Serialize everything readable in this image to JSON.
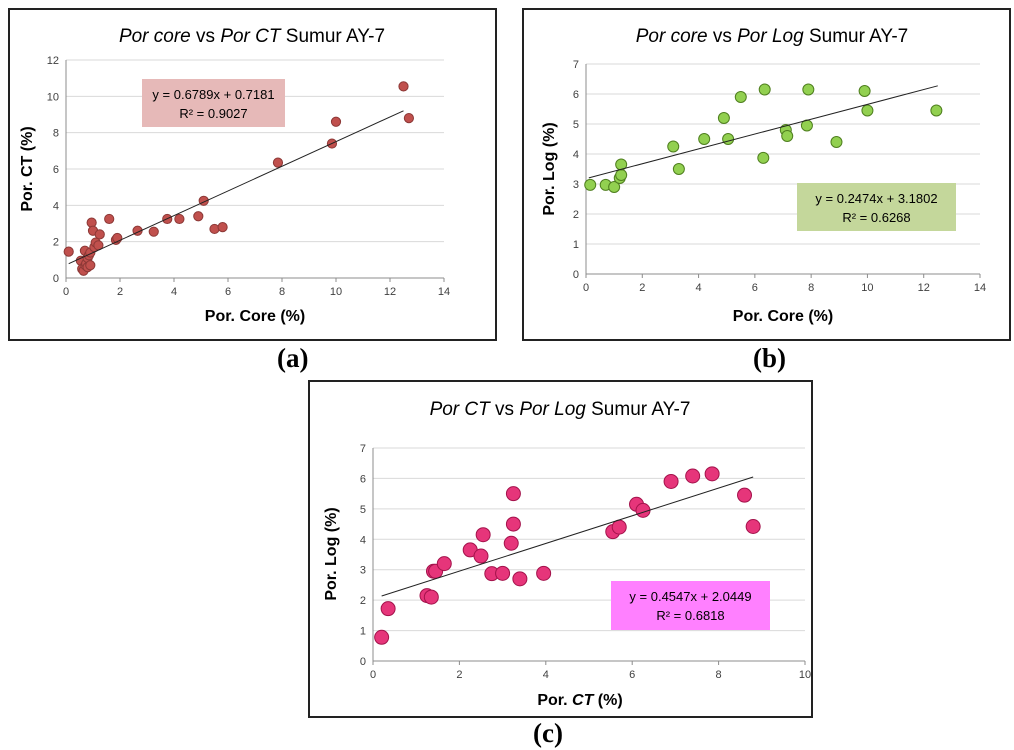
{
  "captions": {
    "a": "(a)",
    "b": "(b)",
    "c": "(c)"
  },
  "chart_data": [
    {
      "type": "scatter",
      "title_parts": [
        {
          "text": "Por core",
          "italic": true
        },
        {
          "text": " vs ",
          "italic": false
        },
        {
          "text": "Por CT",
          "italic": true
        },
        {
          "text": " Sumur AY-7",
          "italic": false
        }
      ],
      "xlabel": "Por. Core (%)",
      "ylabel": "Por. CT (%)",
      "xlim": [
        0,
        14
      ],
      "ylim": [
        0,
        12
      ],
      "xticks": [
        0,
        2,
        4,
        6,
        8,
        10,
        12,
        14
      ],
      "yticks": [
        0,
        2,
        4,
        6,
        8,
        10,
        12
      ],
      "grid": true,
      "marker_color": "#c0504d",
      "marker_stroke": "#8c3836",
      "equation": "y = 0.6789x + 0.7181",
      "r_squared": "R² = 0.9027",
      "equation_box_color": "#e6b9b8",
      "trendline": {
        "slope": 0.6789,
        "intercept": 0.7181,
        "x_start": 0.1,
        "x_end": 12.5
      },
      "x": [
        0.1,
        0.55,
        0.6,
        0.65,
        0.7,
        0.72,
        0.75,
        0.8,
        0.8,
        0.85,
        0.9,
        0.9,
        0.95,
        1.0,
        1.05,
        1.1,
        1.2,
        1.25,
        1.6,
        1.85,
        1.9,
        2.65,
        3.25,
        3.75,
        4.2,
        4.9,
        5.1,
        5.5,
        5.8,
        7.85,
        9.85,
        10.0,
        12.5,
        12.7
      ],
      "y": [
        1.45,
        0.95,
        0.5,
        0.4,
        1.5,
        0.7,
        0.8,
        1.1,
        0.6,
        1.25,
        0.7,
        1.4,
        3.05,
        2.6,
        1.7,
        1.95,
        1.8,
        2.4,
        3.25,
        2.1,
        2.2,
        2.6,
        2.55,
        3.25,
        3.25,
        3.4,
        4.25,
        2.7,
        2.8,
        6.35,
        7.4,
        8.6,
        10.55,
        8.8
      ]
    },
    {
      "type": "scatter",
      "title_parts": [
        {
          "text": "Por core",
          "italic": true
        },
        {
          "text": " vs ",
          "italic": false
        },
        {
          "text": "Por Log",
          "italic": true
        },
        {
          "text": " Sumur AY-7",
          "italic": false
        }
      ],
      "xlabel": "Por. Core (%)",
      "ylabel": "Por. Log (%)",
      "xlim": [
        0,
        14
      ],
      "ylim": [
        0,
        7
      ],
      "xticks": [
        0,
        2,
        4,
        6,
        8,
        10,
        12,
        14
      ],
      "yticks": [
        0,
        1,
        2,
        3,
        4,
        5,
        6,
        7
      ],
      "grid": true,
      "marker_color": "#92d050",
      "marker_stroke": "#4f7f1f",
      "equation": "y = 0.2474x + 3.1802",
      "r_squared": "R² = 0.6268",
      "equation_box_color": "#c4d79b",
      "trendline": {
        "slope": 0.2474,
        "intercept": 3.1802,
        "x_start": 0.1,
        "x_end": 12.5
      },
      "x": [
        0.15,
        0.7,
        1.0,
        1.2,
        1.25,
        1.25,
        3.1,
        3.3,
        4.2,
        4.9,
        5.05,
        5.5,
        6.3,
        6.35,
        7.1,
        7.15,
        7.85,
        7.9,
        8.9,
        9.9,
        10.0,
        12.45
      ],
      "y": [
        2.97,
        2.97,
        2.9,
        3.2,
        3.3,
        3.65,
        4.25,
        3.5,
        4.5,
        5.2,
        4.5,
        5.9,
        3.87,
        6.15,
        4.8,
        4.6,
        4.95,
        6.15,
        4.4,
        6.1,
        5.45,
        5.45
      ]
    },
    {
      "type": "scatter",
      "title_parts": [
        {
          "text": "Por CT",
          "italic": true
        },
        {
          "text": " vs ",
          "italic": false
        },
        {
          "text": "Por Log",
          "italic": true
        },
        {
          "text": " Sumur AY-7",
          "italic": false
        }
      ],
      "xlabel_parts": [
        {
          "text": "Por. ",
          "italic": false
        },
        {
          "text": "CT",
          "italic": true
        },
        {
          "text": " (%)",
          "italic": false
        }
      ],
      "ylabel": "Por. Log (%)",
      "xlim": [
        0,
        10
      ],
      "ylim": [
        0,
        7
      ],
      "xticks": [
        0,
        2,
        4,
        6,
        8,
        10
      ],
      "yticks": [
        0,
        1,
        2,
        3,
        4,
        5,
        6,
        7
      ],
      "grid": true,
      "marker_color": "#e6357a",
      "marker_stroke": "#a3124b",
      "equation": "y = 0.4547x + 2.0449",
      "r_squared": "R² = 0.6818",
      "equation_box_color": "#ff80ff",
      "trendline": {
        "slope": 0.4547,
        "intercept": 2.0449,
        "x_start": 0.2,
        "x_end": 8.8
      },
      "x": [
        0.2,
        0.35,
        1.25,
        1.35,
        1.4,
        1.45,
        1.65,
        2.25,
        2.5,
        2.55,
        2.75,
        3.0,
        3.2,
        3.25,
        3.25,
        3.4,
        3.95,
        5.55,
        5.7,
        6.1,
        6.25,
        6.9,
        7.4,
        7.85,
        8.6,
        8.8
      ],
      "y": [
        0.78,
        1.72,
        2.15,
        2.1,
        2.95,
        2.95,
        3.2,
        3.65,
        3.45,
        4.15,
        2.87,
        2.88,
        3.87,
        4.5,
        5.5,
        2.7,
        2.88,
        4.25,
        4.4,
        5.15,
        4.95,
        5.9,
        6.08,
        6.15,
        5.45,
        4.42
      ]
    }
  ]
}
